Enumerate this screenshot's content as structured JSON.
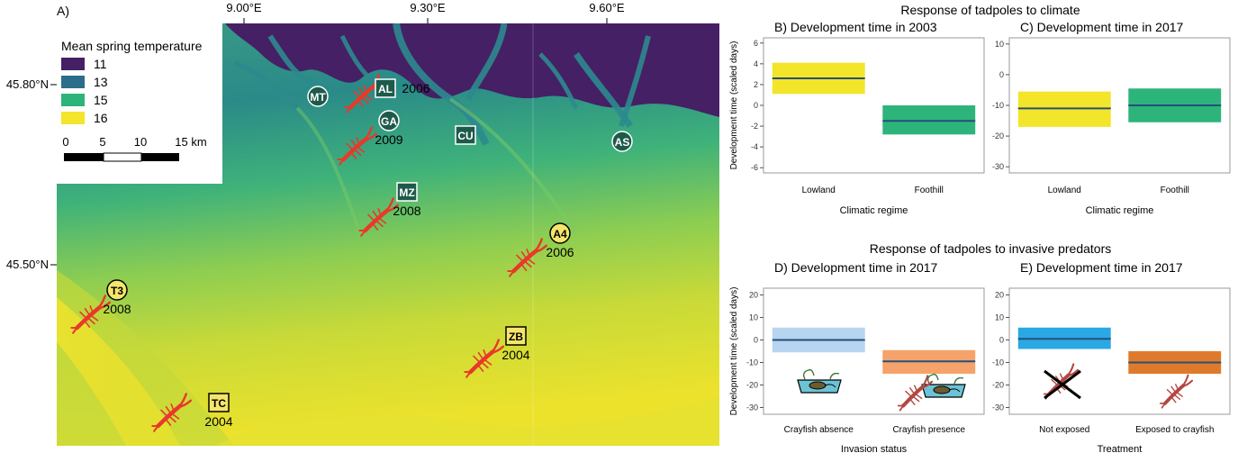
{
  "figure": {
    "panel_a_label": "A)",
    "climate_heading": "Response of tadpoles to climate",
    "predator_heading": "Response of tadpoles to invasive predators"
  },
  "map": {
    "lon_ticks": [
      "9.00°E",
      "9.30°E",
      "9.60°E"
    ],
    "lat_ticks": [
      "45.80°N",
      "45.50°N"
    ],
    "legend": {
      "title": "Mean spring temperature",
      "items": [
        {
          "label": "11",
          "color": "#452065"
        },
        {
          "label": "13",
          "color": "#2c6d8a"
        },
        {
          "label": "15",
          "color": "#2db47a"
        },
        {
          "label": "16",
          "color": "#f2e52a"
        }
      ]
    },
    "scale_bar": {
      "ticks": [
        "0",
        "5",
        "10",
        "15 km"
      ]
    },
    "sites": [
      {
        "code": "MT",
        "year": "",
        "marker": "circle",
        "fill": "#1e5a4a"
      },
      {
        "code": "AL",
        "year": "2006",
        "marker": "square",
        "fill": "#1e5a4a"
      },
      {
        "code": "GA",
        "year": "2009",
        "marker": "circle",
        "fill": "#1e5a4a"
      },
      {
        "code": "CU",
        "year": "",
        "marker": "square",
        "fill": "#1e5a4a"
      },
      {
        "code": "AS",
        "year": "",
        "marker": "circle",
        "fill": "#1e5a4a"
      },
      {
        "code": "MZ",
        "year": "2008",
        "marker": "square",
        "fill": "#1e5a4a"
      },
      {
        "code": "A4",
        "year": "2006",
        "marker": "circle",
        "fill": "#f5e56b"
      },
      {
        "code": "T3",
        "year": "2008",
        "marker": "circle",
        "fill": "#f5e56b"
      },
      {
        "code": "ZB",
        "year": "2004",
        "marker": "square",
        "fill": "#f5e56b"
      },
      {
        "code": "TC",
        "year": "2004",
        "marker": "square",
        "fill": "#f5e56b"
      }
    ]
  },
  "chart_data": [
    {
      "panel": "B)",
      "type": "bar",
      "title": "Development time in 2003",
      "xlabel": "Climatic regime",
      "ylabel": "Development time (scaled days)",
      "categories": [
        "Lowland",
        "Foothill"
      ],
      "mean": [
        2.6,
        -1.5
      ],
      "lower": [
        1.1,
        -2.8
      ],
      "upper": [
        4.1,
        0.0
      ],
      "colors": [
        "#f2e52a",
        "#2db47a"
      ],
      "ylim": [
        -6.5,
        6.5
      ],
      "yticks": [
        -6,
        -4,
        -2,
        0,
        2,
        4,
        6
      ]
    },
    {
      "panel": "C)",
      "type": "bar",
      "title": "Development time in 2017",
      "xlabel": "Climatic regime",
      "ylabel": "",
      "categories": [
        "Lowland",
        "Foothill"
      ],
      "mean": [
        -11,
        -10
      ],
      "lower": [
        -17,
        -15.5
      ],
      "upper": [
        -5.5,
        -4.5
      ],
      "colors": [
        "#f2e52a",
        "#2db47a"
      ],
      "ylim": [
        -32,
        12
      ],
      "yticks": [
        -30,
        -20,
        -10,
        0,
        10
      ]
    },
    {
      "panel": "D)",
      "type": "bar",
      "title": "Development time in 2017",
      "xlabel": "Invasion status",
      "ylabel": "Development time (scaled days)",
      "categories": [
        "Crayfish absence",
        "Crayfish presence"
      ],
      "mean": [
        0,
        -9.5
      ],
      "lower": [
        -5.5,
        -15
      ],
      "upper": [
        5.5,
        -4.5
      ],
      "colors": [
        "#b7d4f0",
        "#f5a36b"
      ],
      "ylim": [
        -33,
        23
      ],
      "yticks": [
        -30,
        -20,
        -10,
        0,
        10,
        20
      ]
    },
    {
      "panel": "E)",
      "type": "bar",
      "title": "Development time in 2017",
      "xlabel": "Treatment",
      "ylabel": "",
      "categories": [
        "Not exposed",
        "Exposed to crayfish"
      ],
      "mean": [
        0.5,
        -10
      ],
      "lower": [
        -4,
        -15
      ],
      "upper": [
        5.5,
        -5
      ],
      "colors": [
        "#2aa8e3",
        "#e07a2b"
      ],
      "ylim": [
        -33,
        23
      ],
      "yticks": [
        -30,
        -20,
        -10,
        0,
        10,
        20
      ]
    }
  ],
  "colors": {
    "mean_line": "#24507a",
    "crayfish": "#e8392a",
    "frame": "#9a9a9a"
  }
}
